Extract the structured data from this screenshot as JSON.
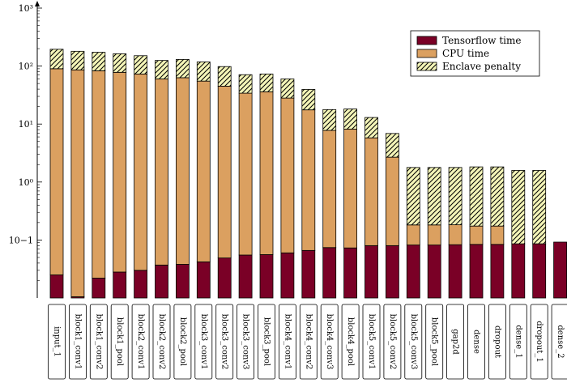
{
  "chart_data": {
    "type": "bar",
    "stacked": true,
    "yscale": "log",
    "ylim": [
      0.01,
      1000
    ],
    "xlabel": "",
    "ylabel": "",
    "grid": false,
    "legend_position": "top-right",
    "y_ticks": [
      {
        "value": 0.1,
        "label": "10−1"
      },
      {
        "value": 1,
        "label": "10⁰"
      },
      {
        "value": 10,
        "label": "10¹"
      },
      {
        "value": 100,
        "label": "10²"
      },
      {
        "value": 1000,
        "label": "10³"
      }
    ],
    "categories": [
      "input_1",
      "block1_conv1",
      "block1_conv2",
      "block1_pool",
      "block2_conv1",
      "block2_conv2",
      "block2_pool",
      "block3_conv1",
      "block3_conv2",
      "block3_conv3",
      "block3_pool",
      "block4_conv1",
      "block4_conv2",
      "block4_conv3",
      "block4_pool",
      "block5_conv1",
      "block5_conv2",
      "block5_conv3",
      "block5_pool",
      "gap2d",
      "dense",
      "dropout",
      "dense_1",
      "dropout_1",
      "dense_2"
    ],
    "series": [
      {
        "name": "Tensorflow time",
        "color": "#7a0026",
        "pattern": "solid",
        "values": [
          0.025,
          0.0105,
          0.022,
          0.028,
          0.03,
          0.037,
          0.038,
          0.042,
          0.049,
          0.055,
          0.056,
          0.06,
          0.066,
          0.074,
          0.073,
          0.08,
          0.08,
          0.082,
          0.082,
          0.083,
          0.084,
          0.084,
          0.086,
          0.086,
          0.092
        ]
      },
      {
        "name": "CPU time",
        "color": "#dba060",
        "pattern": "solid",
        "values": [
          90,
          86,
          83,
          78,
          73,
          60,
          63,
          55,
          45,
          34,
          36,
          28,
          17.5,
          7.7,
          8.1,
          5.7,
          2.6,
          0.1,
          0.1,
          0.1,
          0.09,
          0.09,
          0,
          0,
          0
        ]
      },
      {
        "name": "Enclave penalty",
        "color": "#f4f5b8",
        "pattern": "hatch",
        "values": [
          105,
          94,
          90,
          85,
          78,
          65,
          67,
          63,
          53,
          37,
          37,
          32,
          22,
          10,
          10,
          7.2,
          4.2,
          1.6,
          1.6,
          1.6,
          1.65,
          1.65,
          1.5,
          1.5,
          0
        ]
      }
    ]
  }
}
